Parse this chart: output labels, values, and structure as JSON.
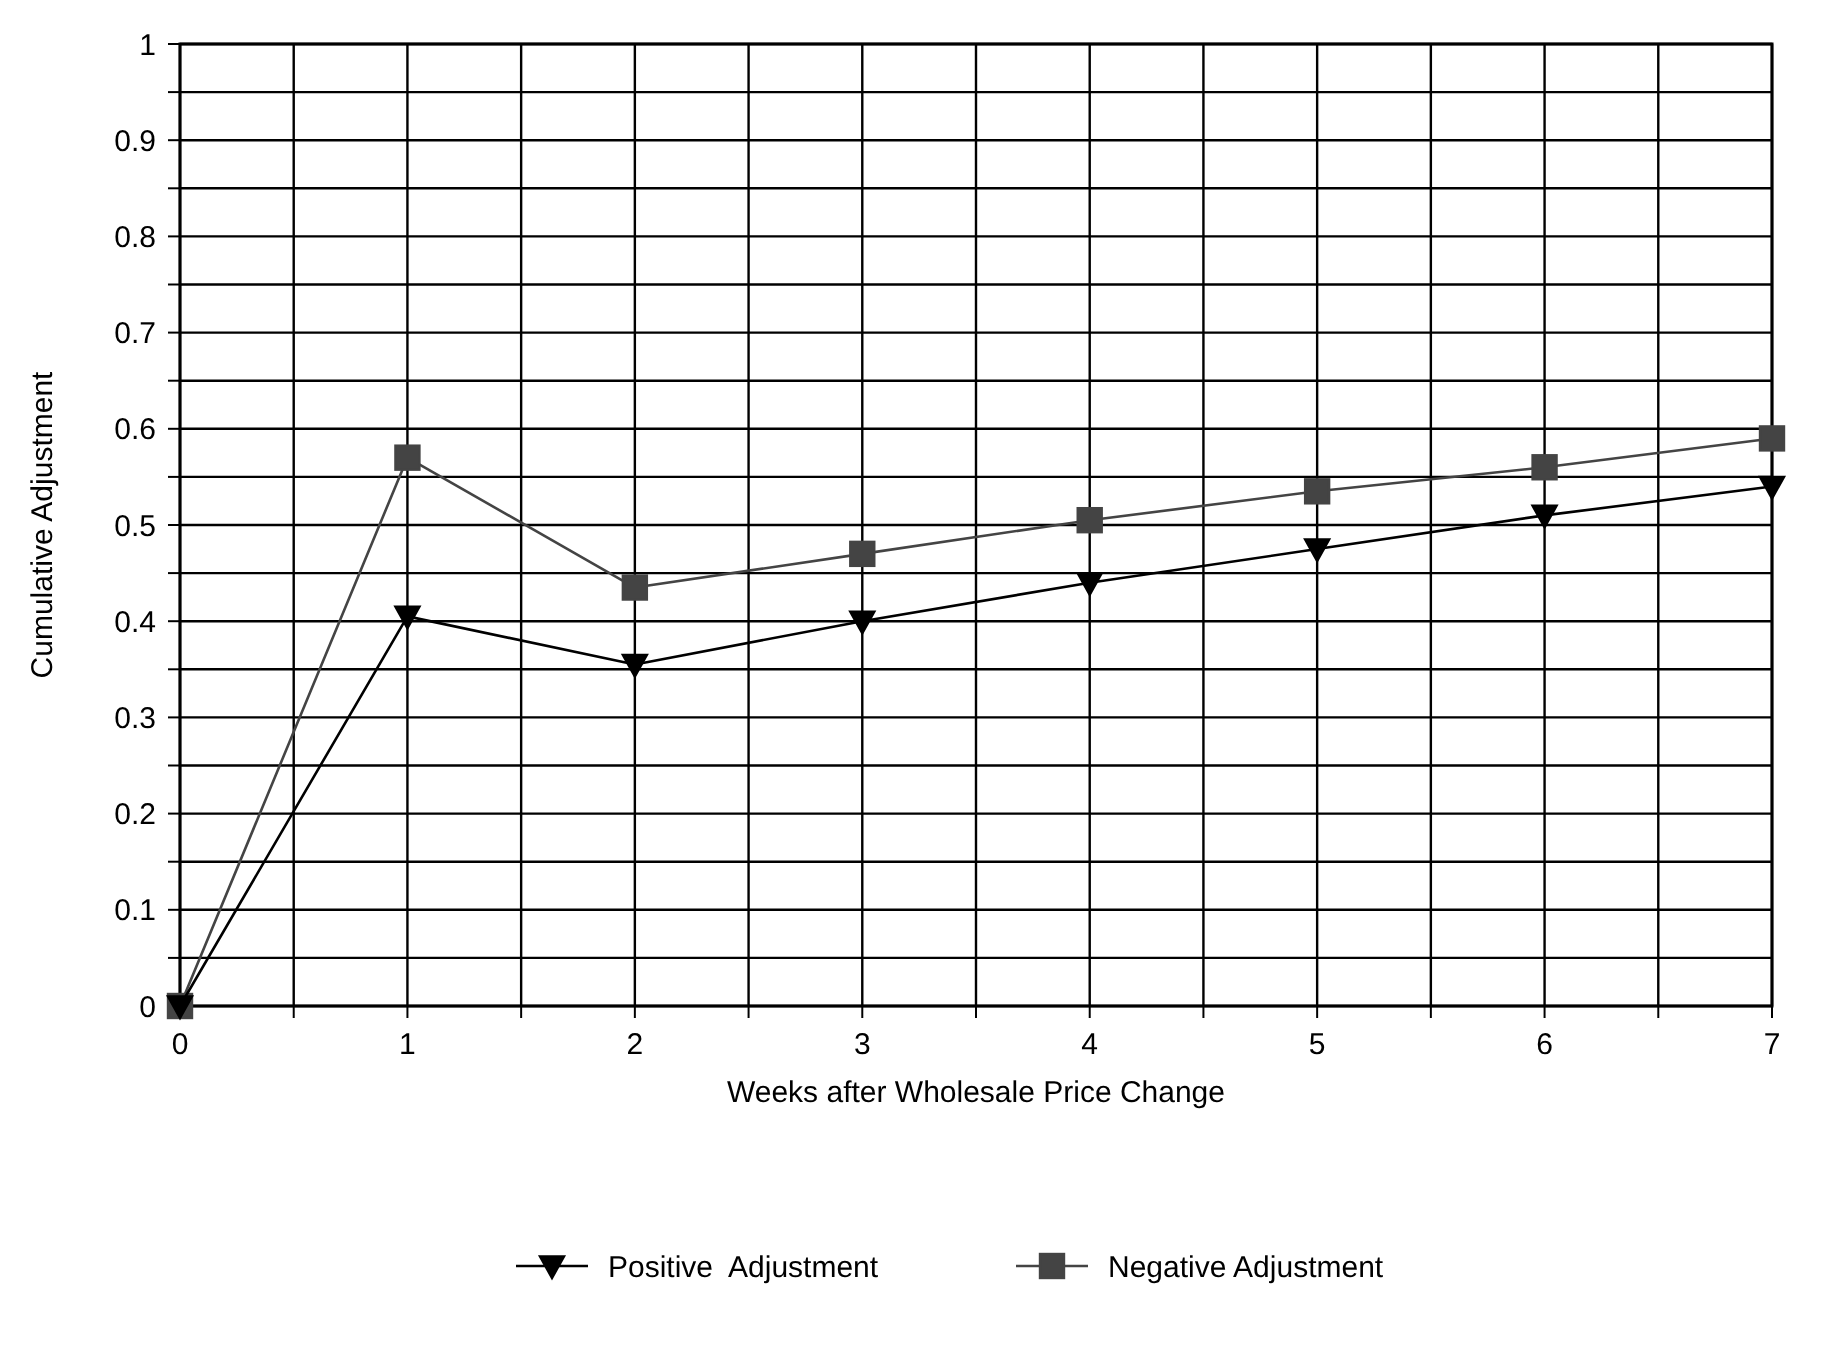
{
  "chart_data": {
    "type": "line",
    "xlabel": "Weeks after Wholesale Price Change",
    "ylabel": "Cumulative Adjustment",
    "x": [
      0,
      1,
      2,
      3,
      4,
      5,
      6,
      7
    ],
    "series": [
      {
        "name": "Positive  Adjustment",
        "color": "#000000",
        "marker": "triangle",
        "values": [
          0,
          0.405,
          0.355,
          0.4,
          0.44,
          0.475,
          0.51,
          0.54
        ]
      },
      {
        "name": "Negative Adjustment",
        "color": "#444444",
        "marker": "square",
        "values": [
          0,
          0.57,
          0.435,
          0.47,
          0.505,
          0.535,
          0.56,
          0.59
        ]
      }
    ],
    "xlim": [
      0,
      7
    ],
    "xticks": [
      0,
      {
        "value": 0.5,
        "label": null
      },
      1,
      {
        "value": 1.5,
        "label": null
      },
      2,
      {
        "value": 2.5,
        "label": null
      },
      3,
      {
        "value": 3.5,
        "label": null
      },
      4,
      {
        "value": 4.5,
        "label": null
      },
      5,
      {
        "value": 5.5,
        "label": null
      },
      6,
      {
        "value": 6.5,
        "label": null
      },
      7
    ],
    "ylim": [
      0,
      1
    ],
    "yticks": [
      0,
      {
        "value": 0.05,
        "label": null
      },
      0.1,
      {
        "value": 0.15,
        "label": null
      },
      0.2,
      {
        "value": 0.25,
        "label": null
      },
      0.3,
      {
        "value": 0.35,
        "label": null
      },
      0.4,
      {
        "value": 0.45,
        "label": null
      },
      0.5,
      {
        "value": 0.55,
        "label": null
      },
      0.6,
      {
        "value": 0.65,
        "label": null
      },
      0.7,
      {
        "value": 0.75,
        "label": null
      },
      0.8,
      {
        "value": 0.85,
        "label": null
      },
      0.9,
      {
        "value": 0.95,
        "label": null
      },
      1
    ],
    "grid": true,
    "legend": "bottom",
    "line_style": "solid"
  }
}
